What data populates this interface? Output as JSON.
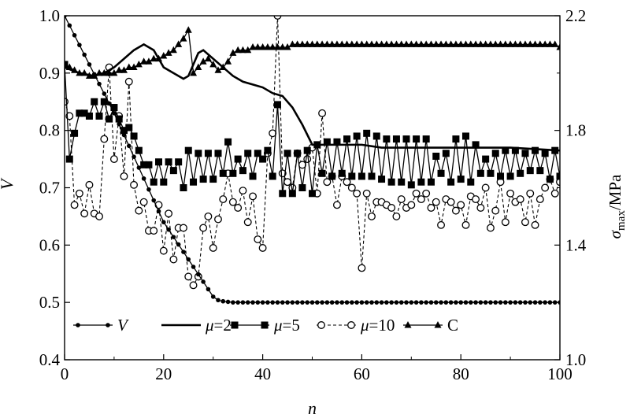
{
  "chart_data": {
    "type": "line",
    "x_axis": {
      "label": "n",
      "range": [
        0,
        100
      ],
      "ticks": [
        "0",
        "20",
        "40",
        "60",
        "80",
        "100"
      ]
    },
    "y_left": {
      "label": "V",
      "range": [
        0.4,
        1.0
      ],
      "ticks": [
        "0.4",
        "0.5",
        "0.6",
        "0.7",
        "0.8",
        "0.9",
        "1.0"
      ]
    },
    "y_right": {
      "label_main": "σ",
      "label_sub": "max",
      "label_unit": "/MPa",
      "range": [
        1.0,
        2.2
      ],
      "ticks": [
        "1.0",
        "1.4",
        "1.8",
        "2.2"
      ]
    },
    "grid": false,
    "legend_placement": "bottom-left",
    "legend": [
      {
        "key": "V",
        "label": "V",
        "marker": "dot-filled",
        "line": "solid"
      },
      {
        "key": "mu2",
        "label": "μ=2",
        "marker": "none",
        "line": "solid-thick"
      },
      {
        "key": "mu5",
        "label": "μ=5",
        "marker": "square-filled",
        "line": "solid"
      },
      {
        "key": "mu10",
        "label": "μ=10",
        "marker": "circle-open",
        "line": "dashed"
      },
      {
        "key": "C",
        "label": "C",
        "marker": "triangle-filled",
        "line": "solid"
      }
    ],
    "series": [
      {
        "key": "V",
        "axis": "left",
        "x": [
          0,
          1,
          2,
          3,
          4,
          5,
          6,
          7,
          8,
          9,
          10,
          11,
          12,
          13,
          14,
          15,
          16,
          17,
          18,
          19,
          20,
          21,
          22,
          23,
          24,
          25,
          26,
          27,
          28,
          29,
          30,
          31,
          32,
          33,
          34,
          35,
          36,
          37,
          38,
          39,
          40,
          41,
          42,
          43,
          44,
          45,
          46,
          47,
          48,
          49,
          50,
          51,
          52,
          53,
          54,
          55,
          56,
          57,
          58,
          59,
          60,
          61,
          62,
          63,
          64,
          65,
          66,
          67,
          68,
          69,
          70,
          71,
          72,
          73,
          74,
          75,
          76,
          77,
          78,
          79,
          80,
          81,
          82,
          83,
          84,
          85,
          86,
          87,
          88,
          89,
          90,
          91,
          92,
          93,
          94,
          95,
          96,
          97,
          98,
          99,
          100
        ],
        "y": [
          1.0,
          0.983,
          0.966,
          0.949,
          0.932,
          0.915,
          0.898,
          0.881,
          0.864,
          0.847,
          0.83,
          0.811,
          0.792,
          0.773,
          0.754,
          0.735,
          0.716,
          0.697,
          0.678,
          0.659,
          0.64,
          0.627,
          0.614,
          0.601,
          0.588,
          0.575,
          0.562,
          0.549,
          0.536,
          0.523,
          0.51,
          0.504,
          0.502,
          0.501,
          0.5,
          0.5,
          0.5,
          0.5,
          0.5,
          0.5,
          0.5,
          0.5,
          0.5,
          0.5,
          0.5,
          0.5,
          0.5,
          0.5,
          0.5,
          0.5,
          0.5,
          0.5,
          0.5,
          0.5,
          0.5,
          0.5,
          0.5,
          0.5,
          0.5,
          0.5,
          0.5,
          0.5,
          0.5,
          0.5,
          0.5,
          0.5,
          0.5,
          0.5,
          0.5,
          0.5,
          0.5,
          0.5,
          0.5,
          0.5,
          0.5,
          0.5,
          0.5,
          0.5,
          0.5,
          0.5,
          0.5,
          0.5,
          0.5,
          0.5,
          0.5,
          0.5,
          0.5,
          0.5,
          0.5,
          0.5,
          0.5,
          0.5,
          0.5,
          0.5,
          0.5,
          0.5,
          0.5,
          0.5,
          0.5,
          0.5,
          0.5
        ]
      },
      {
        "key": "mu2",
        "axis": "right",
        "x": [
          0,
          3,
          6,
          8,
          10,
          12,
          14,
          16,
          18,
          20,
          22,
          24,
          25,
          26,
          27,
          28,
          30,
          32,
          34,
          36,
          38,
          40,
          42,
          44,
          46,
          48,
          50,
          52,
          54,
          56,
          58,
          60,
          64,
          70,
          80,
          90,
          100
        ],
        "y": [
          2.02,
          2.0,
          1.99,
          2.0,
          2.02,
          2.05,
          2.08,
          2.1,
          2.08,
          2.02,
          2.0,
          1.98,
          1.99,
          2.03,
          2.07,
          2.08,
          2.05,
          2.02,
          1.99,
          1.97,
          1.96,
          1.95,
          1.93,
          1.92,
          1.88,
          1.82,
          1.75,
          1.75,
          1.75,
          1.75,
          1.75,
          1.75,
          1.74,
          1.74,
          1.74,
          1.74,
          1.73
        ]
      },
      {
        "key": "mu5",
        "axis": "right",
        "x": [
          0,
          1,
          2,
          3,
          4,
          5,
          6,
          7,
          8,
          9,
          10,
          11,
          12,
          13,
          14,
          15,
          16,
          17,
          18,
          19,
          20,
          21,
          22,
          23,
          24,
          25,
          26,
          27,
          28,
          29,
          30,
          31,
          32,
          33,
          34,
          35,
          36,
          37,
          38,
          39,
          40,
          41,
          42,
          43,
          44,
          45,
          46,
          47,
          48,
          49,
          50,
          51,
          52,
          53,
          54,
          55,
          56,
          57,
          58,
          59,
          60,
          61,
          62,
          63,
          64,
          65,
          66,
          67,
          68,
          69,
          70,
          71,
          72,
          73,
          74,
          75,
          76,
          77,
          78,
          79,
          80,
          81,
          82,
          83,
          84,
          85,
          86,
          87,
          88,
          89,
          90,
          91,
          92,
          93,
          94,
          95,
          96,
          97,
          98,
          99,
          100
        ],
        "y": [
          2.03,
          1.7,
          1.79,
          1.86,
          1.86,
          1.85,
          1.9,
          1.85,
          1.9,
          1.84,
          1.88,
          1.84,
          1.8,
          1.81,
          1.78,
          1.73,
          1.68,
          1.68,
          1.62,
          1.69,
          1.62,
          1.69,
          1.66,
          1.69,
          1.6,
          1.73,
          1.62,
          1.72,
          1.63,
          1.72,
          1.63,
          1.72,
          1.65,
          1.76,
          1.65,
          1.7,
          1.66,
          1.72,
          1.64,
          1.72,
          1.7,
          1.73,
          1.64,
          1.89,
          1.58,
          1.72,
          1.58,
          1.72,
          1.6,
          1.73,
          1.58,
          1.75,
          1.65,
          1.76,
          1.64,
          1.76,
          1.65,
          1.77,
          1.64,
          1.78,
          1.64,
          1.79,
          1.64,
          1.78,
          1.63,
          1.77,
          1.62,
          1.77,
          1.62,
          1.77,
          1.61,
          1.77,
          1.62,
          1.77,
          1.62,
          1.71,
          1.65,
          1.72,
          1.62,
          1.77,
          1.63,
          1.78,
          1.62,
          1.75,
          1.65,
          1.7,
          1.65,
          1.72,
          1.64,
          1.73,
          1.64,
          1.73,
          1.65,
          1.72,
          1.66,
          1.73,
          1.66,
          1.72,
          1.63,
          1.73,
          1.64
        ]
      },
      {
        "key": "mu10",
        "axis": "right",
        "x": [
          0,
          1,
          2,
          3,
          4,
          5,
          6,
          7,
          8,
          9,
          10,
          11,
          12,
          13,
          14,
          15,
          16,
          17,
          18,
          19,
          20,
          21,
          22,
          23,
          24,
          25,
          26,
          27,
          28,
          29,
          30,
          31,
          32,
          33,
          34,
          35,
          36,
          37,
          38,
          39,
          40,
          41,
          42,
          43,
          44,
          45,
          46,
          47,
          48,
          49,
          50,
          51,
          52,
          53,
          54,
          55,
          56,
          57,
          58,
          59,
          60,
          61,
          62,
          63,
          64,
          65,
          66,
          67,
          68,
          69,
          70,
          71,
          72,
          73,
          74,
          75,
          76,
          77,
          78,
          79,
          80,
          81,
          82,
          83,
          84,
          85,
          86,
          87,
          88,
          89,
          90,
          91,
          92,
          93,
          94,
          95,
          96,
          97,
          98,
          99,
          100
        ],
        "y": [
          1.9,
          1.85,
          1.54,
          1.58,
          1.51,
          1.61,
          1.51,
          1.5,
          1.77,
          2.02,
          1.7,
          1.85,
          1.64,
          1.97,
          1.61,
          1.52,
          1.55,
          1.45,
          1.45,
          1.54,
          1.38,
          1.51,
          1.35,
          1.46,
          1.46,
          1.29,
          1.26,
          1.29,
          1.46,
          1.5,
          1.39,
          1.49,
          1.56,
          1.65,
          1.55,
          1.53,
          1.59,
          1.48,
          1.57,
          1.42,
          1.39,
          1.72,
          1.79,
          2.2,
          1.65,
          1.62,
          1.6,
          1.72,
          1.68,
          1.7,
          1.74,
          1.58,
          1.86,
          1.62,
          1.64,
          1.54,
          1.64,
          1.62,
          1.6,
          1.58,
          1.32,
          1.58,
          1.5,
          1.55,
          1.55,
          1.54,
          1.53,
          1.5,
          1.56,
          1.53,
          1.54,
          1.58,
          1.56,
          1.58,
          1.53,
          1.55,
          1.47,
          1.56,
          1.55,
          1.52,
          1.54,
          1.47,
          1.57,
          1.56,
          1.53,
          1.6,
          1.46,
          1.52,
          1.62,
          1.48,
          1.58,
          1.55,
          1.56,
          1.48,
          1.58,
          1.47,
          1.56,
          1.6,
          1.63,
          1.58,
          1.62
        ]
      },
      {
        "key": "C",
        "axis": "right",
        "x": [
          0,
          1,
          2,
          3,
          4,
          5,
          6,
          7,
          8,
          9,
          10,
          11,
          12,
          13,
          14,
          15,
          16,
          17,
          18,
          19,
          20,
          21,
          22,
          23,
          24,
          25,
          26,
          27,
          28,
          29,
          30,
          31,
          32,
          33,
          34,
          35,
          36,
          37,
          38,
          39,
          40,
          41,
          42,
          43,
          44,
          45,
          46,
          47,
          48,
          49,
          50,
          51,
          52,
          53,
          54,
          55,
          56,
          57,
          58,
          59,
          60,
          61,
          62,
          63,
          64,
          65,
          66,
          67,
          68,
          69,
          70,
          71,
          72,
          73,
          74,
          75,
          76,
          77,
          78,
          79,
          80,
          81,
          82,
          83,
          84,
          85,
          86,
          87,
          88,
          89,
          90,
          91,
          92,
          93,
          94,
          95,
          96,
          97,
          98,
          99,
          100
        ],
        "y": [
          2.03,
          2.02,
          2.01,
          2.0,
          2.0,
          1.99,
          1.99,
          2.0,
          2.0,
          2.0,
          2.0,
          2.01,
          2.01,
          2.02,
          2.02,
          2.03,
          2.04,
          2.04,
          2.05,
          2.05,
          2.06,
          2.07,
          2.08,
          2.1,
          2.12,
          2.15,
          2.0,
          2.02,
          2.04,
          2.05,
          2.03,
          2.01,
          2.02,
          2.04,
          2.07,
          2.08,
          2.08,
          2.08,
          2.09,
          2.09,
          2.09,
          2.09,
          2.09,
          2.09,
          2.09,
          2.09,
          2.1,
          2.1,
          2.1,
          2.1,
          2.1,
          2.1,
          2.1,
          2.1,
          2.1,
          2.1,
          2.1,
          2.1,
          2.1,
          2.1,
          2.1,
          2.1,
          2.1,
          2.1,
          2.1,
          2.1,
          2.1,
          2.1,
          2.1,
          2.1,
          2.1,
          2.1,
          2.1,
          2.1,
          2.1,
          2.1,
          2.1,
          2.1,
          2.1,
          2.1,
          2.1,
          2.1,
          2.1,
          2.1,
          2.1,
          2.1,
          2.1,
          2.1,
          2.1,
          2.1,
          2.1,
          2.1,
          2.1,
          2.1,
          2.1,
          2.1,
          2.1,
          2.1,
          2.1,
          2.1,
          2.09
        ]
      }
    ]
  }
}
